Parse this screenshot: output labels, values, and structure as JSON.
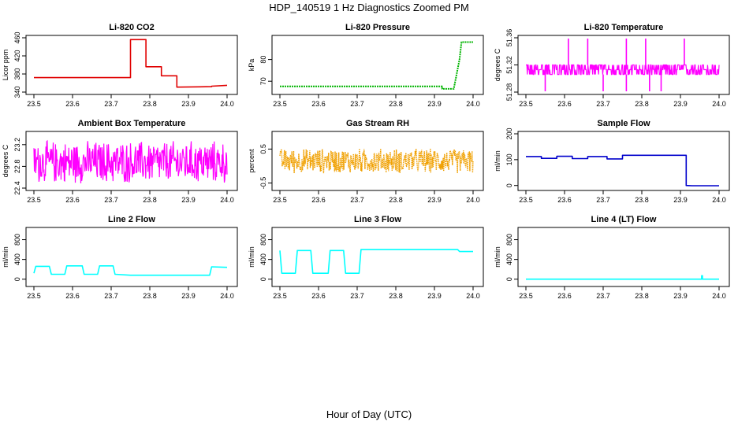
{
  "page": {
    "title": "HDP_140519  1 Hz Diagnostics Zoomed PM",
    "xlabel": "Hour of Day (UTC)"
  },
  "chart_data": [
    {
      "type": "line",
      "title": "Li-820 CO2",
      "ylabel": "Licor ppm",
      "xlabel": "",
      "xlim": [
        23.5,
        24.0
      ],
      "ylim": [
        340,
        460
      ],
      "x_ticks": [
        "23.5",
        "23.6",
        "23.7",
        "23.8",
        "23.9",
        "24.0"
      ],
      "y_ticks": [
        "340",
        "380",
        "420",
        "460"
      ],
      "color": "#e00000",
      "series": [
        {
          "x": [
            23.5,
            23.75,
            23.75,
            23.79,
            23.79,
            23.83,
            23.83,
            23.87,
            23.87,
            23.96,
            23.96,
            24.0
          ],
          "values": [
            372,
            372,
            456,
            456,
            396,
            396,
            376,
            376,
            351,
            352,
            353,
            355
          ]
        }
      ]
    },
    {
      "type": "line",
      "title": "Li-820 Pressure",
      "ylabel": "kPa",
      "xlabel": "",
      "xlim": [
        23.5,
        24.0
      ],
      "ylim": [
        65,
        90
      ],
      "x_ticks": [
        "23.5",
        "23.6",
        "23.7",
        "23.8",
        "23.9",
        "24.0"
      ],
      "y_ticks": [
        "70",
        "80"
      ],
      "color": "#00b400",
      "series": [
        {
          "x": [
            23.5,
            23.7,
            23.92,
            23.92,
            23.95,
            23.965,
            23.97,
            24.0
          ],
          "values": [
            67.6,
            67.6,
            67.6,
            66.5,
            66.5,
            80,
            88,
            88
          ]
        }
      ]
    },
    {
      "type": "line",
      "title": "Li-820 Temperature",
      "ylabel": "degrees C",
      "xlabel": "",
      "xlim": [
        23.5,
        24.0
      ],
      "ylim": [
        51.28,
        51.36
      ],
      "x_ticks": [
        "23.5",
        "23.6",
        "23.7",
        "23.8",
        "23.9",
        "24.0"
      ],
      "y_ticks": [
        "51.28",
        "51.32",
        "51.36"
      ],
      "color": "#ff00ff",
      "series": [
        {
          "x": [
            23.5,
            24.0
          ],
          "values": [
            51.313,
            51.313
          ],
          "band": [
            51.306,
            51.32
          ],
          "spikes_up": [
            23.61,
            23.66,
            23.76,
            23.81,
            23.91
          ],
          "spikes_down": [
            23.55,
            23.7,
            23.76,
            23.82,
            23.85
          ]
        }
      ]
    },
    {
      "type": "line",
      "title": "Ambient Box Temperature",
      "ylabel": "degrees C",
      "xlabel": "",
      "xlim": [
        23.5,
        24.0
      ],
      "ylim": [
        22.4,
        23.4
      ],
      "x_ticks": [
        "23.5",
        "23.6",
        "23.7",
        "23.8",
        "23.9",
        "24.0"
      ],
      "y_ticks": [
        "22.4",
        "22.8",
        "23.2"
      ],
      "color": "#ff00ff",
      "series": [
        {
          "x": [
            23.5,
            24.0
          ],
          "values": [
            22.85,
            22.85
          ],
          "band": [
            22.45,
            23.3
          ]
        }
      ]
    },
    {
      "type": "line",
      "title": "Gas Stream RH",
      "ylabel": "percent",
      "xlabel": "",
      "xlim": [
        23.5,
        24.0
      ],
      "ylim": [
        -0.65,
        0.95
      ],
      "x_ticks": [
        "23.5",
        "23.6",
        "23.7",
        "23.8",
        "23.9",
        "24.0"
      ],
      "y_ticks": [
        "-0.5",
        "0.5"
      ],
      "color": "#f0a000",
      "series": [
        {
          "x": [
            23.5,
            24.0
          ],
          "values": [
            0.12,
            0.12
          ],
          "band": [
            -0.25,
            0.55
          ]
        }
      ]
    },
    {
      "type": "line",
      "title": "Sample Flow",
      "ylabel": "ml/min",
      "xlabel": "",
      "xlim": [
        23.5,
        24.0
      ],
      "ylim": [
        -10,
        200
      ],
      "x_ticks": [
        "23.5",
        "23.6",
        "23.7",
        "23.8",
        "23.9",
        "24.0"
      ],
      "y_ticks": [
        "0",
        "100",
        "200"
      ],
      "color": "#0000cc",
      "series": [
        {
          "x": [
            23.5,
            23.54,
            23.54,
            23.58,
            23.58,
            23.62,
            23.62,
            23.66,
            23.66,
            23.71,
            23.71,
            23.75,
            23.75,
            23.915,
            23.915,
            23.93,
            24.0
          ],
          "values": [
            112,
            112,
            105,
            105,
            113,
            113,
            104,
            104,
            112,
            112,
            103,
            103,
            117,
            117,
            0,
            -1,
            -1
          ]
        }
      ]
    },
    {
      "type": "line",
      "title": "Line 2 Flow",
      "ylabel": "ml/min",
      "xlabel": "",
      "xlim": [
        23.5,
        24.0
      ],
      "ylim": [
        -100,
        1000
      ],
      "x_ticks": [
        "23.5",
        "23.6",
        "23.7",
        "23.8",
        "23.9",
        "24.0"
      ],
      "y_ticks": [
        "0",
        "400",
        "800"
      ],
      "color": "#00ffff",
      "series": [
        {
          "x": [
            23.5,
            23.505,
            23.54,
            23.545,
            23.58,
            23.585,
            23.625,
            23.63,
            23.665,
            23.67,
            23.705,
            23.71,
            23.75,
            23.955,
            23.96,
            24.0
          ],
          "values": [
            120,
            260,
            260,
            100,
            100,
            270,
            270,
            100,
            100,
            270,
            270,
            100,
            80,
            80,
            250,
            240
          ]
        }
      ]
    },
    {
      "type": "line",
      "title": "Line 3 Flow",
      "ylabel": "ml/min",
      "xlabel": "",
      "xlim": [
        23.5,
        24.0
      ],
      "ylim": [
        -100,
        1000
      ],
      "x_ticks": [
        "23.5",
        "23.6",
        "23.7",
        "23.8",
        "23.9",
        "24.0"
      ],
      "y_ticks": [
        "0",
        "400",
        "800"
      ],
      "color": "#00ffff",
      "series": [
        {
          "x": [
            23.5,
            23.5,
            23.505,
            23.54,
            23.545,
            23.58,
            23.585,
            23.625,
            23.63,
            23.665,
            23.67,
            23.705,
            23.71,
            23.96,
            23.965,
            24.0
          ],
          "values": [
            580,
            580,
            120,
            120,
            580,
            580,
            120,
            120,
            580,
            580,
            120,
            120,
            600,
            600,
            560,
            560
          ]
        }
      ]
    },
    {
      "type": "line",
      "title": "Line 4 (LT) Flow",
      "ylabel": "ml/min",
      "xlabel": "",
      "xlim": [
        23.5,
        24.0
      ],
      "ylim": [
        -100,
        1000
      ],
      "x_ticks": [
        "23.5",
        "23.6",
        "23.7",
        "23.8",
        "23.9",
        "24.0"
      ],
      "y_ticks": [
        "0",
        "400",
        "800"
      ],
      "color": "#00ffff",
      "series": [
        {
          "x": [
            23.5,
            23.955,
            23.955,
            23.957,
            23.957,
            24.0
          ],
          "values": [
            0,
            0,
            70,
            70,
            0,
            0
          ]
        }
      ]
    }
  ]
}
